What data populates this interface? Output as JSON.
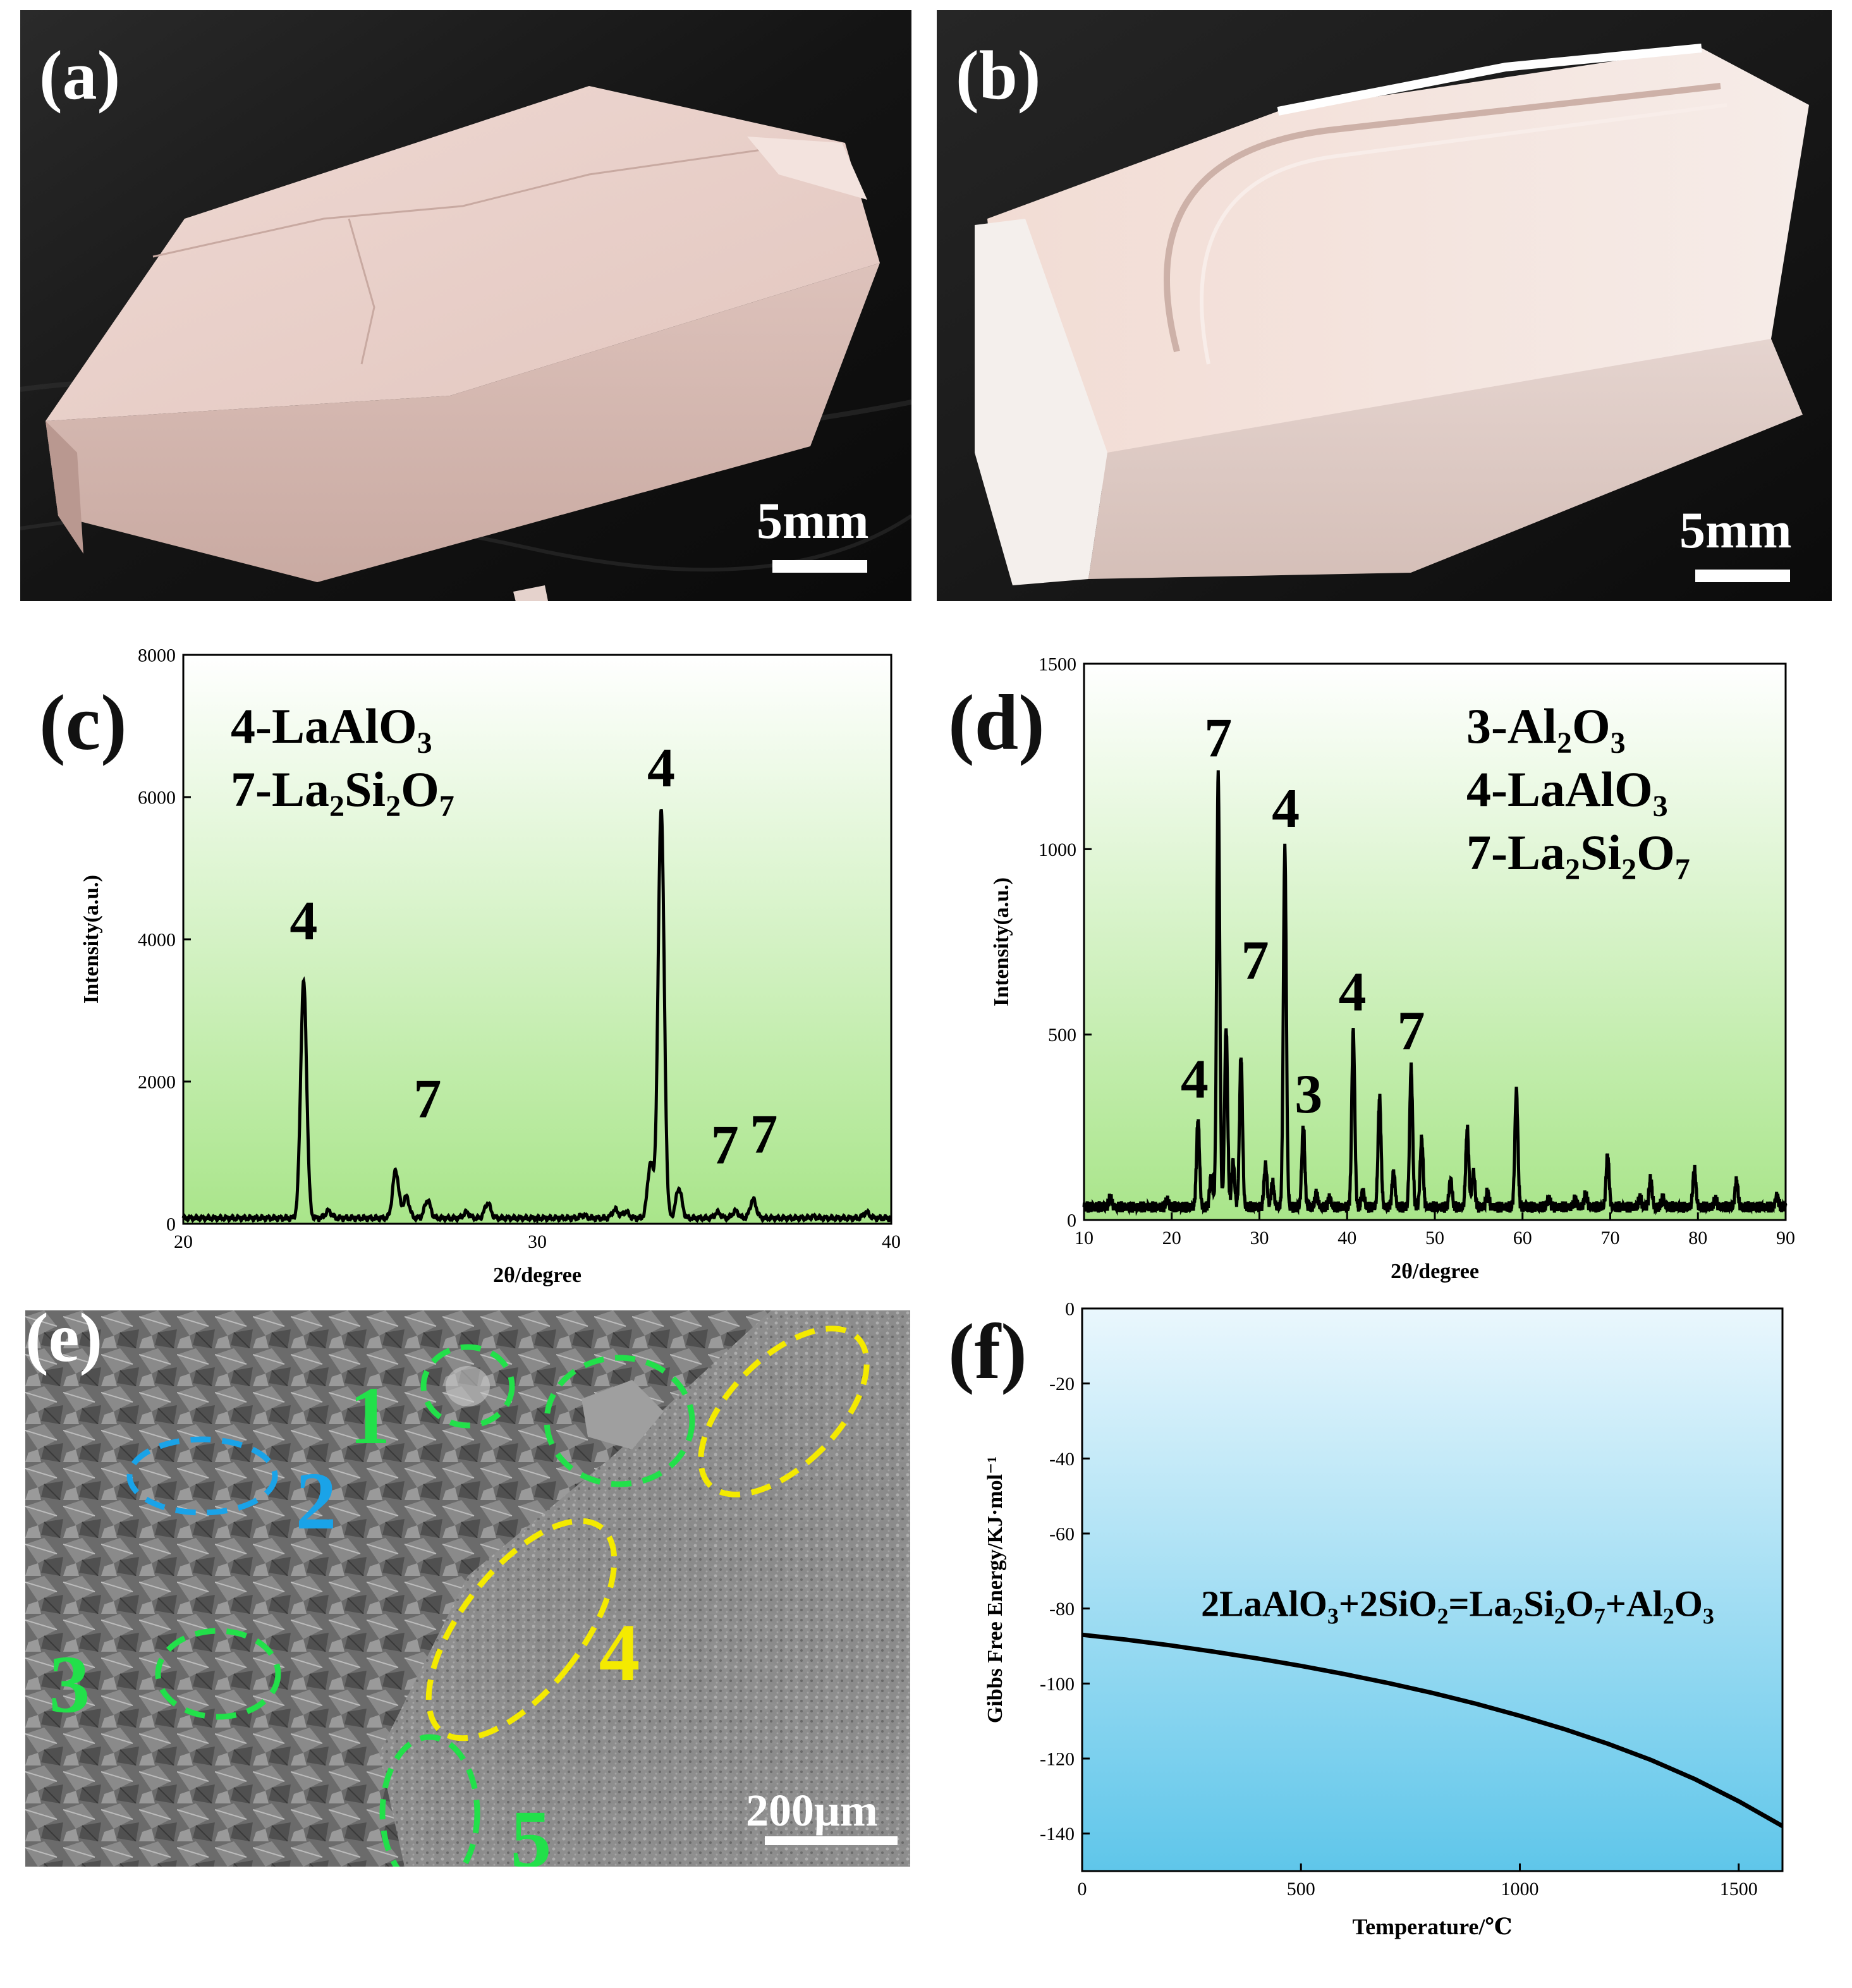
{
  "photos": {
    "a": {
      "label": "(a)",
      "scale_text": "5mm"
    },
    "b": {
      "label": "(b)",
      "scale_text": "5mm"
    }
  },
  "sem": {
    "label": "(e)",
    "scale_text": "200μm",
    "regions": [
      {
        "id": "1",
        "color": "#22e04a"
      },
      {
        "id": "2",
        "color": "#1aa3e8"
      },
      {
        "id": "3",
        "color": "#22e04a"
      },
      {
        "id": "4",
        "color": "#f4ea00"
      },
      {
        "id": "5",
        "color": "#22e04a"
      }
    ]
  },
  "colors": {
    "xrd_bg_top": "#ffffff",
    "xrd_bg_bottom": "#a9e58a",
    "gibbs_bg_top": "#eaf7fd",
    "gibbs_bg_bottom": "#5fc6ea"
  },
  "chart_data": [
    {
      "panel": "(c)",
      "type": "line",
      "xlabel": "2θ/degree",
      "ylabel": "Intensity(a.u.)",
      "xlim": [
        20,
        40
      ],
      "ylim": [
        0,
        8000
      ],
      "xticks": [
        20,
        30,
        40
      ],
      "yticks": [
        0,
        2000,
        4000,
        6000,
        8000
      ],
      "legend": [
        "4-LaAlO3",
        "7-La2Si2O7"
      ],
      "legend_position": "top-left",
      "baseline": 80,
      "peaks": [
        {
          "x": 23.4,
          "y": 3400
        },
        {
          "x": 24.1,
          "y": 180
        },
        {
          "x": 26.0,
          "y": 750
        },
        {
          "x": 26.3,
          "y": 380
        },
        {
          "x": 26.9,
          "y": 330
        },
        {
          "x": 28.0,
          "y": 160
        },
        {
          "x": 28.6,
          "y": 290
        },
        {
          "x": 31.3,
          "y": 120
        },
        {
          "x": 32.2,
          "y": 200
        },
        {
          "x": 32.5,
          "y": 170
        },
        {
          "x": 33.2,
          "y": 850
        },
        {
          "x": 33.5,
          "y": 5850
        },
        {
          "x": 34.0,
          "y": 500
        },
        {
          "x": 35.1,
          "y": 160
        },
        {
          "x": 35.6,
          "y": 180
        },
        {
          "x": 36.1,
          "y": 340
        },
        {
          "x": 37.8,
          "y": 100
        },
        {
          "x": 39.3,
          "y": 160
        }
      ],
      "annotations": [
        {
          "text": "4",
          "x": 23.4,
          "y": 4000
        },
        {
          "text": "7",
          "x": 26.9,
          "y": 1500
        },
        {
          "text": "4",
          "x": 33.5,
          "y": 6150
        },
        {
          "text": "7",
          "x": 35.3,
          "y": 850
        },
        {
          "text": "7",
          "x": 36.4,
          "y": 1000
        }
      ]
    },
    {
      "panel": "(d)",
      "type": "line",
      "xlabel": "2θ/degree",
      "ylabel": "Intensity(a.u.)",
      "xlim": [
        10,
        90
      ],
      "ylim": [
        0,
        1500
      ],
      "xticks": [
        10,
        20,
        30,
        40,
        50,
        60,
        70,
        80,
        90
      ],
      "yticks": [
        0,
        500,
        1000,
        1500
      ],
      "legend": [
        "3-Al2O3",
        "4-LaAlO3",
        "7-La2Si2O7"
      ],
      "legend_position": "top-right",
      "baseline": 35,
      "peaks": [
        {
          "x": 13.0,
          "y": 60
        },
        {
          "x": 19.5,
          "y": 55
        },
        {
          "x": 23.0,
          "y": 270
        },
        {
          "x": 24.5,
          "y": 120
        },
        {
          "x": 25.3,
          "y": 1200
        },
        {
          "x": 26.2,
          "y": 520
        },
        {
          "x": 27.0,
          "y": 160
        },
        {
          "x": 27.9,
          "y": 440
        },
        {
          "x": 30.7,
          "y": 150
        },
        {
          "x": 31.5,
          "y": 100
        },
        {
          "x": 32.9,
          "y": 1000
        },
        {
          "x": 35.0,
          "y": 250
        },
        {
          "x": 36.5,
          "y": 70
        },
        {
          "x": 38.0,
          "y": 60
        },
        {
          "x": 40.7,
          "y": 510
        },
        {
          "x": 41.8,
          "y": 80
        },
        {
          "x": 43.7,
          "y": 330
        },
        {
          "x": 45.3,
          "y": 130
        },
        {
          "x": 47.3,
          "y": 410
        },
        {
          "x": 48.5,
          "y": 220
        },
        {
          "x": 51.8,
          "y": 110
        },
        {
          "x": 53.7,
          "y": 245
        },
        {
          "x": 54.4,
          "y": 130
        },
        {
          "x": 56.0,
          "y": 75
        },
        {
          "x": 59.3,
          "y": 350
        },
        {
          "x": 63.0,
          "y": 60
        },
        {
          "x": 66.0,
          "y": 55
        },
        {
          "x": 67.2,
          "y": 70
        },
        {
          "x": 69.7,
          "y": 175
        },
        {
          "x": 73.4,
          "y": 60
        },
        {
          "x": 74.6,
          "y": 110
        },
        {
          "x": 76.0,
          "y": 60
        },
        {
          "x": 79.6,
          "y": 135
        },
        {
          "x": 82.0,
          "y": 55
        },
        {
          "x": 84.4,
          "y": 105
        },
        {
          "x": 89.0,
          "y": 65
        }
      ],
      "annotations": [
        {
          "text": "7",
          "x": 25.3,
          "y": 1250
        },
        {
          "text": "4",
          "x": 33.0,
          "y": 1060
        },
        {
          "text": "7",
          "x": 29.5,
          "y": 650
        },
        {
          "text": "4",
          "x": 40.6,
          "y": 565
        },
        {
          "text": "7",
          "x": 47.3,
          "y": 460
        },
        {
          "text": "4",
          "x": 22.6,
          "y": 330
        },
        {
          "text": "3",
          "x": 35.6,
          "y": 290
        }
      ]
    },
    {
      "panel": "(f)",
      "type": "line",
      "xlabel": "Temperature/℃",
      "ylabel": "Gibbs Free Energy/KJ·mol⁻¹",
      "xlim": [
        0,
        1600
      ],
      "ylim": [
        -150,
        0
      ],
      "xticks": [
        0,
        500,
        1000,
        1500
      ],
      "yticks": [
        -140,
        -120,
        -100,
        -80,
        -60,
        -40,
        -20,
        0
      ],
      "annotation": "2LaAlO3+2SiO2=La2Si2O7+Al2O3",
      "series": [
        {
          "x": [
            0,
            100,
            200,
            300,
            400,
            500,
            600,
            700,
            800,
            900,
            1000,
            1100,
            1200,
            1300,
            1400,
            1500,
            1600
          ],
          "values": [
            -87,
            -88.3,
            -89.8,
            -91.5,
            -93.3,
            -95.3,
            -97.5,
            -99.9,
            -102.5,
            -105.4,
            -108.6,
            -112.1,
            -116.0,
            -120.4,
            -125.5,
            -131.4,
            -138
          ]
        }
      ]
    }
  ]
}
